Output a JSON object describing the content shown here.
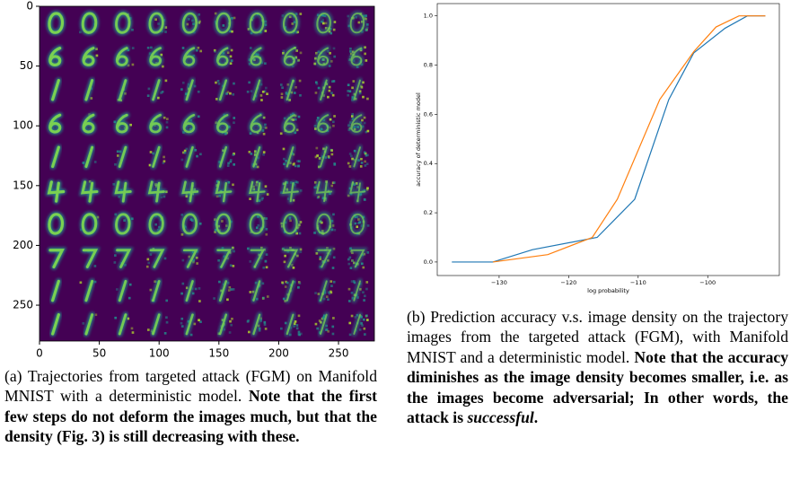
{
  "chart_data": [
    {
      "type": "image",
      "xlim": [
        0,
        280
      ],
      "ylim": [
        280,
        0
      ],
      "xticks": [
        0,
        50,
        100,
        150,
        200,
        250
      ],
      "yticks": [
        0,
        50,
        100,
        150,
        200,
        250
      ]
    },
    {
      "type": "line",
      "x_label": "log probability",
      "y_label": "accuracy of deterministic model",
      "xlim": [
        -138.9,
        -89.7
      ],
      "ylim": [
        -0.055,
        1.05
      ],
      "xticks": [
        {
          "value": -130,
          "label": "−130"
        },
        {
          "value": -120,
          "label": "−120"
        },
        {
          "value": -110,
          "label": "−110"
        },
        {
          "value": -100,
          "label": "−100"
        }
      ],
      "yticks": [
        {
          "value": 0,
          "label": "0.0"
        },
        0.2,
        0.4,
        0.6,
        0.8,
        {
          "value": 1,
          "label": "1.0"
        }
      ],
      "series": [
        {
          "color": "#1f77b4",
          "x": [
            -136.8,
            -130.9,
            -125.2,
            -115.9,
            -110.5,
            -105.6,
            -102,
            -97.5,
            -94.3,
            -91.7
          ],
          "values": [
            0,
            0,
            0.05,
            0.1,
            0.255,
            0.66,
            0.85,
            0.95,
            1.0,
            1.0
          ]
        },
        {
          "color": "#ff7f0e",
          "x": [
            -130.9,
            -123,
            -116.6,
            -113,
            -106.9,
            -102,
            -98.8,
            -95.5,
            -91.7
          ],
          "values": [
            0,
            0.03,
            0.1,
            0.255,
            0.66,
            0.855,
            0.955,
            1.0,
            1.0
          ]
        }
      ]
    }
  ],
  "captions": [
    {
      "plain": "(a) Trajectories from targeted attack (FGM) on Manifold MNIST with a deterministic model.",
      "bold": "Note that the first few steps do not deform the images much, but that the density (Fig. 3) is still decreasing with these."
    },
    {
      "plain": "(b) Prediction accuracy v.s. image density on the trajectory images from the targeted attack (FGM), with Manifold MNIST and a deterministic model.",
      "bold": "Note that the accuracy diminishes as the image density becomes smaller, i.e. as the images become adversarial; In other words, the attack is",
      "emphasis": "successful",
      "end": "."
    }
  ]
}
